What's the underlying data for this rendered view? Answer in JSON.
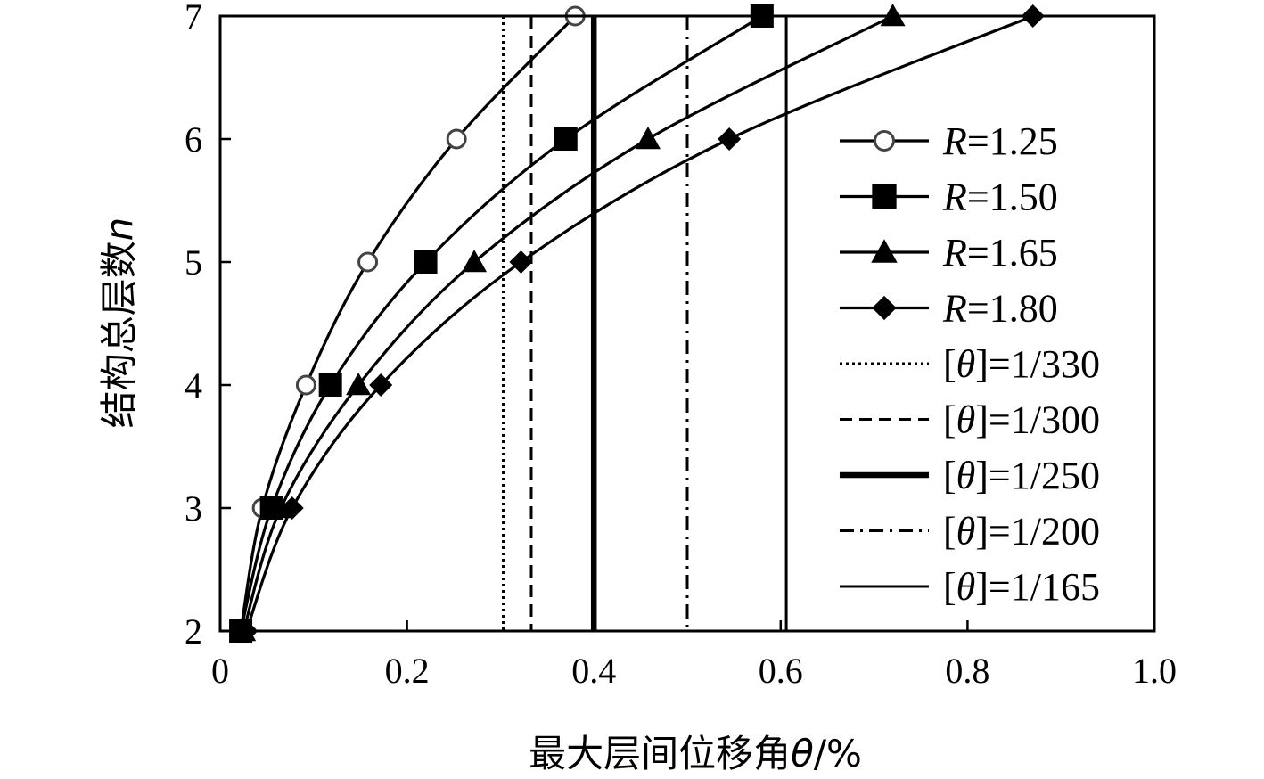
{
  "chart_data": {
    "type": "line",
    "xlabel": {
      "text": "最大层间位移角",
      "symbol": "θ",
      "unit": "/%"
    },
    "ylabel": {
      "text": "结构总层数",
      "symbol": "n"
    },
    "xlim": [
      0,
      1.0
    ],
    "ylim": [
      2,
      7
    ],
    "xticks": [
      0,
      0.2,
      0.4,
      0.6,
      0.8,
      1.0
    ],
    "xtick_labels": [
      "0",
      "0.2",
      "0.4",
      "0.6",
      "0.8",
      "1.0"
    ],
    "yticks": [
      2,
      3,
      4,
      5,
      6,
      7
    ],
    "ytick_labels": [
      "2",
      "3",
      "4",
      "5",
      "6",
      "7"
    ],
    "grid": false,
    "legend_position": "right",
    "series": [
      {
        "name": "R=1.25",
        "name_var": "R",
        "name_val": "=1.25",
        "marker": "open-circle",
        "x": [
          0.022,
          0.045,
          0.092,
          0.158,
          0.253,
          0.38
        ],
        "y": [
          2,
          3,
          4,
          5,
          6,
          7
        ]
      },
      {
        "name": "R=1.50",
        "name_var": "R",
        "name_val": "=1.50",
        "marker": "square",
        "x": [
          0.022,
          0.055,
          0.118,
          0.22,
          0.37,
          0.58
        ],
        "y": [
          2,
          3,
          4,
          5,
          6,
          7
        ]
      },
      {
        "name": "R=1.65",
        "name_var": "R",
        "name_val": "=1.65",
        "marker": "triangle",
        "x": [
          0.025,
          0.065,
          0.148,
          0.272,
          0.458,
          0.72
        ],
        "y": [
          2,
          3,
          4,
          5,
          6,
          7
        ]
      },
      {
        "name": "R=1.80",
        "name_var": "R",
        "name_val": "=1.80",
        "marker": "diamond",
        "x": [
          0.028,
          0.077,
          0.172,
          0.322,
          0.545,
          0.87
        ],
        "y": [
          2,
          3,
          4,
          5,
          6,
          7
        ]
      }
    ],
    "reference_lines": [
      {
        "label": "[θ]=1/330",
        "x": 0.303,
        "style": "dotted"
      },
      {
        "label": "[θ]=1/300",
        "x": 0.333,
        "style": "dashed"
      },
      {
        "label": "[θ]=1/250",
        "x": 0.4,
        "style": "thick"
      },
      {
        "label": "[θ]=1/200",
        "x": 0.5,
        "style": "dashdot"
      },
      {
        "label": "[θ]=1/165",
        "x": 0.606,
        "style": "thin"
      }
    ]
  }
}
